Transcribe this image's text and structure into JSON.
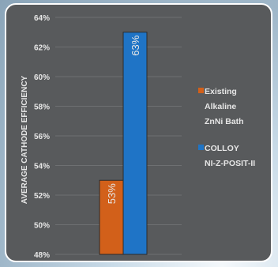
{
  "chart_data": {
    "type": "bar",
    "ylabel": "AVERAGE CATHODE EFFICIENCY",
    "ylim": [
      48,
      64
    ],
    "yticks": [
      "48%",
      "50%",
      "52%",
      "54%",
      "56%",
      "58%",
      "60%",
      "62%",
      "64%"
    ],
    "grid": true,
    "legend_position": "right",
    "series": [
      {
        "name": "Existing Alkaline ZnNi Bath",
        "legend_lines": [
          "Existing",
          "Alkaline",
          "ZnNi Bath"
        ],
        "value": 53,
        "label": "53%",
        "color": "#d2601a"
      },
      {
        "name": "COLLOY NI-Z-POSIT-II",
        "legend_lines": [
          "COLLOY",
          "NI-Z-POSIT-II"
        ],
        "value": 63,
        "label": "63%",
        "color": "#1f74c6"
      }
    ]
  },
  "colors": {
    "panel_background": "#585a5c",
    "text": "#e6e6e6",
    "gridline": "#6e7072",
    "bar_outline": "#2b2b2b"
  }
}
